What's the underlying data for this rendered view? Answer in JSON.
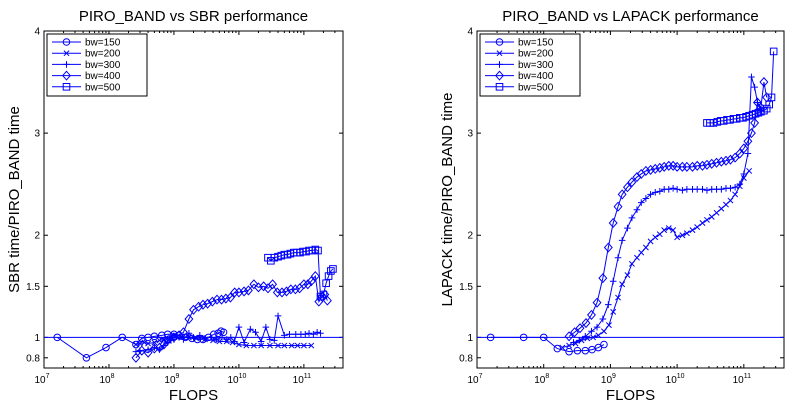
{
  "chart_data": [
    {
      "type": "line",
      "title": "PIRO_BAND vs SBR performance",
      "xlabel": "FLOPS",
      "ylabel": "SBR time/PIRO_BAND time",
      "xscale": "log",
      "xlim": [
        10000000,
        400000000000
      ],
      "ylim": [
        0.7,
        4
      ],
      "xticks": [
        {
          "base": "10",
          "exp": "7",
          "value": 10000000
        },
        {
          "base": "10",
          "exp": "8",
          "value": 100000000
        },
        {
          "base": "10",
          "exp": "9",
          "value": 1000000000
        },
        {
          "base": "10",
          "exp": "10",
          "value": 10000000000
        },
        {
          "base": "10",
          "exp": "11",
          "value": 100000000000
        }
      ],
      "yticks": [
        {
          "label": "0.8",
          "value": 0.8
        },
        {
          "label": "1",
          "value": 1
        },
        {
          "label": "1.5",
          "value": 1.5
        },
        {
          "label": "2",
          "value": 2
        },
        {
          "label": "3",
          "value": 3
        },
        {
          "label": "4",
          "value": 4
        }
      ],
      "grid": false,
      "legend_position": "top-left",
      "reference_line": 1,
      "color": "#0000ff",
      "series": [
        {
          "name": "bw=150",
          "marker": "circle",
          "x": [
            16000000.0,
            45000000.0,
            90000000.0,
            160000000.0,
            260000000.0,
            320000000.0,
            400000000.0,
            500000000.0,
            650000000.0,
            800000000.0,
            1000000000.0,
            1200000000.0,
            1500000000.0,
            1900000000.0,
            2300000000.0,
            2800000000.0,
            3400000000.0,
            4100000000.0,
            4800000000.0,
            5300000000.0,
            5800000000.0
          ],
          "y": [
            1.0,
            0.8,
            0.9,
            1.0,
            0.93,
            0.99,
            1.0,
            1.01,
            1.02,
            1.03,
            1.03,
            1.02,
            1.0,
            0.99,
            0.98,
            0.98,
            1.0,
            1.03,
            1.04,
            1.06,
            1.05
          ]
        },
        {
          "name": "bw=200",
          "marker": "x",
          "x": [
            260000000.0,
            300000000.0,
            350000000.0,
            400000000.0,
            500000000.0,
            600000000.0,
            700000000.0,
            800000000.0,
            900000000.0,
            1000000000.0,
            1300000000.0,
            1700000000.0,
            2200000000.0,
            3000000000.0,
            4000000000.0,
            5000000000.0,
            6500000000.0,
            8000000000.0,
            10000000000.0,
            13000000000.0,
            17000000000.0,
            22000000000.0,
            30000000000.0,
            40000000000.0,
            50000000000.0,
            65000000000.0,
            80000000000.0,
            100000000000.0,
            130000000000.0
          ],
          "y": [
            0.93,
            0.94,
            0.95,
            0.94,
            0.95,
            0.97,
            0.98,
            0.99,
            1.0,
            1.02,
            1.01,
            1.0,
            0.99,
            0.98,
            0.97,
            0.96,
            0.96,
            0.95,
            0.93,
            0.92,
            0.92,
            0.92,
            0.92,
            0.92,
            0.92,
            0.92,
            0.92,
            0.92,
            0.92
          ]
        },
        {
          "name": "bw=300",
          "marker": "plus",
          "x": [
            260000000.0,
            300000000.0,
            400000000.0,
            500000000.0,
            600000000.0,
            700000000.0,
            800000000.0,
            900000000.0,
            1000000000.0,
            1200000000.0,
            1400000000.0,
            1700000000.0,
            2000000000.0,
            2500000000.0,
            3000000000.0,
            3700000000.0,
            4500000000.0,
            5500000000.0,
            6500000000.0,
            7500000000.0,
            8500000000.0,
            10000000000.0,
            12000000000.0,
            15000000000.0,
            18000000000.0,
            22000000000.0,
            26000000000.0,
            30000000000.0,
            35000000000.0,
            40000000000.0,
            50000000000.0,
            60000000000.0,
            75000000000.0,
            90000000000.0,
            105000000000.0,
            120000000000.0,
            140000000000.0,
            160000000000.0,
            180000000000.0
          ],
          "y": [
            0.86,
            0.87,
            0.88,
            0.9,
            0.88,
            0.92,
            0.95,
            0.97,
            0.98,
            1.0,
            0.98,
            1.04,
            1.0,
            1.02,
            0.99,
            1.0,
            0.98,
            1.0,
            0.98,
            1.0,
            0.96,
            1.1,
            0.95,
            1.08,
            1.05,
            0.96,
            1.1,
            0.98,
            0.97,
            1.21,
            1.02,
            1.03,
            1.03,
            1.03,
            1.03,
            1.04,
            1.03,
            1.05,
            1.04
          ]
        },
        {
          "name": "bw=400",
          "marker": "diamond",
          "x": [
            260000000.0,
            320000000.0,
            400000000.0,
            500000000.0,
            600000000.0,
            700000000.0,
            800000000.0,
            1000000000.0,
            1200000000.0,
            1400000000.0,
            1700000000.0,
            2000000000.0,
            2400000000.0,
            2800000000.0,
            3300000000.0,
            3900000000.0,
            4600000000.0,
            5400000000.0,
            6300000000.0,
            7400000000.0,
            8600000000.0,
            10000000000.0,
            12000000000.0,
            14000000000.0,
            17000000000.0,
            20000000000.0,
            24000000000.0,
            28000000000.0,
            33000000000.0,
            39000000000.0,
            46000000000.0,
            54000000000.0,
            63000000000.0,
            74000000000.0,
            86000000000.0,
            100000000000.0,
            115000000000.0,
            130000000000.0,
            150000000000.0,
            170000000000.0,
            190000000000.0,
            210000000000.0,
            230000000000.0
          ],
          "y": [
            0.8,
            0.87,
            0.85,
            0.89,
            0.9,
            0.93,
            0.97,
            1.0,
            1.02,
            1.05,
            1.18,
            1.27,
            1.3,
            1.32,
            1.33,
            1.35,
            1.37,
            1.37,
            1.38,
            1.39,
            1.44,
            1.44,
            1.45,
            1.46,
            1.52,
            1.49,
            1.5,
            1.48,
            1.52,
            1.44,
            1.44,
            1.45,
            1.47,
            1.47,
            1.48,
            1.52,
            1.52,
            1.55,
            1.6,
            1.35,
            1.4,
            1.42,
            1.36
          ]
        },
        {
          "name": "bw=500",
          "marker": "square",
          "x": [
            28000000000.0,
            31000000000.0,
            35000000000.0,
            40000000000.0,
            45000000000.0,
            50000000000.0,
            56000000000.0,
            62000000000.0,
            70000000000.0,
            78000000000.0,
            87000000000.0,
            97000000000.0,
            108000000000.0,
            120000000000.0,
            135000000000.0,
            150000000000.0,
            165000000000.0,
            180000000000.0,
            200000000000.0,
            220000000000.0,
            240000000000.0,
            260000000000.0,
            280000000000.0
          ],
          "y": [
            1.78,
            1.75,
            1.78,
            1.79,
            1.8,
            1.81,
            1.81,
            1.82,
            1.83,
            1.83,
            1.83,
            1.84,
            1.84,
            1.85,
            1.85,
            1.86,
            1.85,
            1.4,
            1.42,
            1.53,
            1.6,
            1.65,
            1.67
          ]
        }
      ]
    },
    {
      "type": "line",
      "title": "PIRO_BAND vs LAPACK performance",
      "xlabel": "FLOPS",
      "ylabel": "LAPACK time/PIRO_BAND time",
      "xscale": "log",
      "xlim": [
        10000000,
        400000000000
      ],
      "ylim": [
        0.7,
        4
      ],
      "xticks": [
        {
          "base": "10",
          "exp": "7",
          "value": 10000000
        },
        {
          "base": "10",
          "exp": "8",
          "value": 100000000
        },
        {
          "base": "10",
          "exp": "9",
          "value": 1000000000
        },
        {
          "base": "10",
          "exp": "10",
          "value": 10000000000
        },
        {
          "base": "10",
          "exp": "11",
          "value": 100000000000
        }
      ],
      "yticks": [
        {
          "label": "0.8",
          "value": 0.8
        },
        {
          "label": "1",
          "value": 1
        },
        {
          "label": "1.5",
          "value": 1.5
        },
        {
          "label": "2",
          "value": 2
        },
        {
          "label": "3",
          "value": 3
        },
        {
          "label": "4",
          "value": 4
        }
      ],
      "grid": false,
      "legend_position": "top-left",
      "reference_line": 1,
      "color": "#0000ff",
      "series": [
        {
          "name": "bw=150",
          "marker": "circle",
          "x": [
            16000000.0,
            50000000.0,
            100000000.0,
            160000000.0,
            240000000.0,
            320000000.0,
            420000000.0,
            530000000.0,
            660000000.0,
            800000000.0
          ],
          "y": [
            1.0,
            1.0,
            1.0,
            0.89,
            0.86,
            0.87,
            0.87,
            0.88,
            0.9,
            0.93
          ]
        },
        {
          "name": "bw=200",
          "marker": "x",
          "x": [
            190000000.0,
            240000000.0,
            300000000.0,
            370000000.0,
            450000000.0,
            550000000.0,
            660000000.0,
            800000000.0,
            950000000.0,
            1100000000.0,
            1300000000.0,
            1500000000.0,
            1800000000.0,
            2100000000.0,
            2500000000.0,
            2900000000.0,
            3400000000.0,
            4000000000.0,
            4700000000.0,
            5500000000.0,
            6400000000.0,
            7500000000.0,
            8700000000.0,
            10000000000.0,
            12000000000.0,
            14000000000.0,
            17000000000.0,
            20000000000.0,
            24000000000.0,
            28000000000.0,
            33000000000.0,
            39000000000.0,
            46000000000.0,
            54000000000.0,
            63000000000.0,
            74000000000.0,
            87000000000.0,
            100000000000.0,
            120000000000.0
          ],
          "y": [
            0.9,
            0.92,
            0.94,
            0.97,
            0.99,
            1.0,
            1.02,
            1.06,
            1.12,
            1.25,
            1.39,
            1.52,
            1.61,
            1.72,
            1.78,
            1.83,
            1.88,
            1.94,
            1.98,
            2.01,
            2.05,
            2.07,
            2.05,
            1.98,
            2.0,
            2.02,
            2.05,
            2.08,
            2.12,
            2.15,
            2.18,
            2.22,
            2.26,
            2.3,
            2.34,
            2.4,
            2.48,
            2.56,
            2.63
          ]
        },
        {
          "name": "bw=300",
          "marker": "plus",
          "x": [
            280000000.0,
            340000000.0,
            420000000.0,
            520000000.0,
            630000000.0,
            770000000.0,
            930000000.0,
            1100000000.0,
            1300000000.0,
            1500000000.0,
            1800000000.0,
            2100000000.0,
            2500000000.0,
            2900000000.0,
            3400000000.0,
            4000000000.0,
            4700000000.0,
            5500000000.0,
            6400000000.0,
            7500000000.0,
            8700000000.0,
            10000000000.0,
            12000000000.0,
            14000000000.0,
            17000000000.0,
            20000000000.0,
            24000000000.0,
            28000000000.0,
            33000000000.0,
            39000000000.0,
            46000000000.0,
            54000000000.0,
            63000000000.0,
            74000000000.0,
            87000000000.0,
            100000000000.0,
            115000000000.0,
            130000000000.0,
            145000000000.0,
            160000000000.0,
            180000000000.0
          ],
          "y": [
            0.95,
            0.97,
            1.01,
            1.06,
            1.1,
            1.18,
            1.32,
            1.55,
            1.78,
            1.95,
            2.07,
            2.17,
            2.25,
            2.32,
            2.36,
            2.4,
            2.42,
            2.43,
            2.45,
            2.45,
            2.46,
            2.45,
            2.44,
            2.45,
            2.45,
            2.45,
            2.45,
            2.44,
            2.45,
            2.45,
            2.45,
            2.46,
            2.46,
            2.47,
            2.5,
            2.6,
            2.8,
            3.55,
            3.45,
            3.3,
            3.22
          ]
        },
        {
          "name": "bw=400",
          "marker": "diamond",
          "x": [
            240000000.0,
            290000000.0,
            350000000.0,
            430000000.0,
            520000000.0,
            630000000.0,
            770000000.0,
            930000000.0,
            1100000000.0,
            1300000000.0,
            1500000000.0,
            1800000000.0,
            2100000000.0,
            2500000000.0,
            2900000000.0,
            3400000000.0,
            4000000000.0,
            4700000000.0,
            5500000000.0,
            6400000000.0,
            7500000000.0,
            8700000000.0,
            10000000000.0,
            12000000000.0,
            14000000000.0,
            17000000000.0,
            20000000000.0,
            24000000000.0,
            28000000000.0,
            33000000000.0,
            39000000000.0,
            46000000000.0,
            54000000000.0,
            63000000000.0,
            74000000000.0,
            87000000000.0,
            100000000000.0,
            115000000000.0,
            130000000000.0,
            145000000000.0,
            160000000000.0,
            180000000000.0,
            200000000000.0,
            220000000000.0
          ],
          "y": [
            1.01,
            1.05,
            1.09,
            1.14,
            1.22,
            1.34,
            1.58,
            1.88,
            2.12,
            2.28,
            2.4,
            2.47,
            2.52,
            2.57,
            2.6,
            2.63,
            2.64,
            2.65,
            2.66,
            2.67,
            2.68,
            2.68,
            2.67,
            2.67,
            2.67,
            2.67,
            2.68,
            2.68,
            2.69,
            2.7,
            2.71,
            2.72,
            2.73,
            2.74,
            2.76,
            2.8,
            2.85,
            2.92,
            3.0,
            3.1,
            3.3,
            3.25,
            3.5,
            3.35
          ]
        },
        {
          "name": "bw=500",
          "marker": "square",
          "x": [
            28000000000.0,
            31000000000.0,
            35000000000.0,
            40000000000.0,
            45000000000.0,
            50000000000.0,
            56000000000.0,
            62000000000.0,
            70000000000.0,
            78000000000.0,
            87000000000.0,
            97000000000.0,
            108000000000.0,
            120000000000.0,
            135000000000.0,
            150000000000.0,
            165000000000.0,
            180000000000.0,
            200000000000.0,
            220000000000.0,
            240000000000.0,
            260000000000.0,
            280000000000.0
          ],
          "y": [
            3.1,
            3.1,
            3.1,
            3.11,
            3.12,
            3.12,
            3.13,
            3.13,
            3.14,
            3.14,
            3.15,
            3.15,
            3.16,
            3.17,
            3.18,
            3.19,
            3.2,
            3.21,
            3.22,
            3.24,
            3.28,
            3.35,
            3.8
          ]
        }
      ]
    }
  ]
}
